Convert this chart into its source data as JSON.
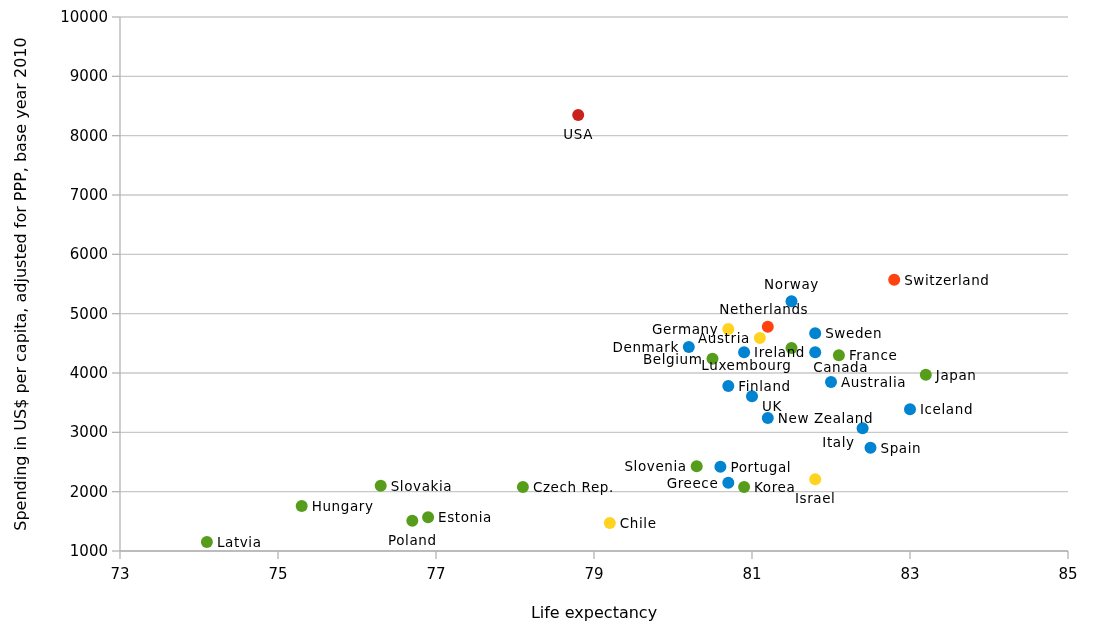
{
  "chart_data": {
    "type": "scatter",
    "xlabel": "Life expectancy",
    "ylabel": "Spending in US$ per capita, adjusted for PPP, base year 2010",
    "xlim": [
      73,
      85
    ],
    "xticks": [
      73,
      75,
      77,
      79,
      81,
      83,
      85
    ],
    "ylim": [
      1000,
      10000
    ],
    "yticks": [
      1000,
      2000,
      3000,
      4000,
      5000,
      6000,
      7000,
      8000,
      9000,
      10000
    ],
    "grid": "y",
    "marker": "circle",
    "series": [
      {
        "color": "#c9211e",
        "x": [
          78.8
        ],
        "values": [
          8350
        ]
      },
      {
        "color": "#ff420e",
        "x": [
          82.8,
          81.2
        ],
        "values": [
          5570,
          4780
        ]
      },
      {
        "color": "#ffd320",
        "x": [
          80.7,
          81.1,
          81.8,
          79.2
        ],
        "values": [
          4740,
          4590,
          2210,
          1470
        ]
      },
      {
        "color": "#0084d1",
        "x": [
          81.5,
          81.8,
          80.2,
          80.9,
          81.8,
          80.7,
          82.0,
          81.0,
          83.0,
          81.2,
          82.4,
          82.5,
          80.6,
          80.7
        ],
        "values": [
          5210,
          4670,
          4440,
          4350,
          4350,
          3780,
          3850,
          3610,
          3390,
          3240,
          3070,
          2740,
          2420,
          2150
        ]
      },
      {
        "color": "#579d1c",
        "x": [
          81.5,
          80.5,
          82.1,
          83.2,
          80.3,
          80.9,
          78.1,
          76.3,
          75.3,
          76.9,
          76.7,
          74.1
        ],
        "values": [
          4420,
          4240,
          4300,
          3970,
          2430,
          2080,
          2080,
          2100,
          1760,
          1570,
          1510,
          1150
        ]
      }
    ],
    "annotations": [
      {
        "text": "USA",
        "x": 78.8,
        "y": 8350
      },
      {
        "text": "Switzerland",
        "x": 82.8,
        "y": 5570
      },
      {
        "text": "Netherlands",
        "x": 81.2,
        "y": 4780
      },
      {
        "text": "Norway",
        "x": 81.5,
        "y": 5210
      },
      {
        "text": "Germany",
        "x": 80.7,
        "y": 4740
      },
      {
        "text": "Austria",
        "x": 81.1,
        "y": 4590
      },
      {
        "text": "Sweden",
        "x": 81.8,
        "y": 4670
      },
      {
        "text": "Denmark",
        "x": 80.2,
        "y": 4440
      },
      {
        "text": "Luxembourg",
        "x": 81.5,
        "y": 4420
      },
      {
        "text": "Ireland",
        "x": 80.9,
        "y": 4350
      },
      {
        "text": "Belgium",
        "x": 80.5,
        "y": 4240
      },
      {
        "text": "Canada",
        "x": 81.8,
        "y": 4350
      },
      {
        "text": "France",
        "x": 82.1,
        "y": 4300
      },
      {
        "text": "Japan",
        "x": 83.2,
        "y": 3970
      },
      {
        "text": "Finland",
        "x": 80.7,
        "y": 3780
      },
      {
        "text": "Australia",
        "x": 82.0,
        "y": 3850
      },
      {
        "text": "UK",
        "x": 81.0,
        "y": 3610
      },
      {
        "text": "Iceland",
        "x": 83.0,
        "y": 3390
      },
      {
        "text": "New Zealand",
        "x": 81.2,
        "y": 3240
      },
      {
        "text": "Italy",
        "x": 82.4,
        "y": 3070
      },
      {
        "text": "Spain",
        "x": 82.5,
        "y": 2740
      },
      {
        "text": "Slovenia",
        "x": 80.3,
        "y": 2430
      },
      {
        "text": "Portugal",
        "x": 80.6,
        "y": 2420
      },
      {
        "text": "Israel",
        "x": 81.8,
        "y": 2210
      },
      {
        "text": "Greece",
        "x": 80.7,
        "y": 2150
      },
      {
        "text": "Korea",
        "x": 80.9,
        "y": 2080
      },
      {
        "text": "Chile",
        "x": 79.2,
        "y": 1470
      },
      {
        "text": "Czech Rep.",
        "x": 78.1,
        "y": 2080
      },
      {
        "text": "Slovakia",
        "x": 76.3,
        "y": 2100
      },
      {
        "text": "Hungary",
        "x": 75.3,
        "y": 1760
      },
      {
        "text": "Estonia",
        "x": 76.9,
        "y": 1570
      },
      {
        "text": "Poland",
        "x": 76.7,
        "y": 1510
      },
      {
        "text": "Latvia",
        "x": 74.1,
        "y": 1150
      }
    ]
  }
}
